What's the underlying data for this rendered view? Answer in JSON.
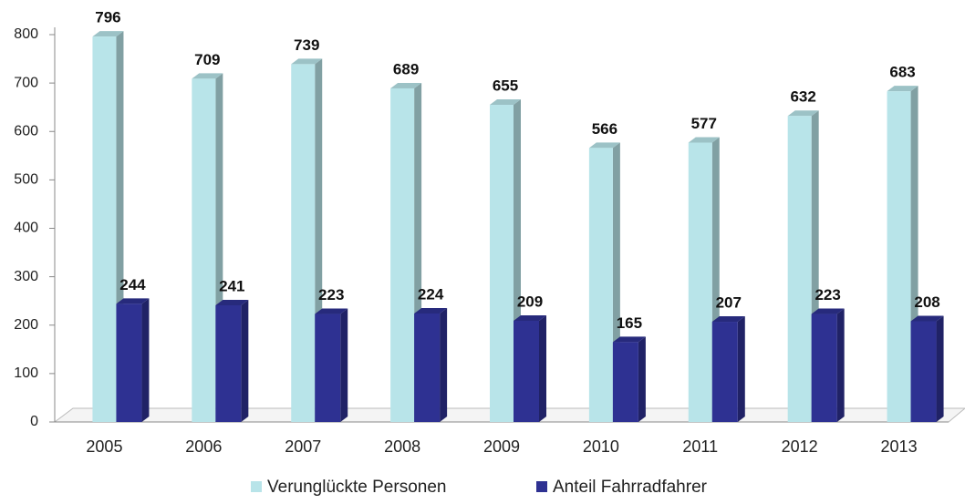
{
  "chart_data": {
    "type": "bar3d",
    "categories": [
      "2005",
      "2006",
      "2007",
      "2008",
      "2009",
      "2010",
      "2011",
      "2012",
      "2013"
    ],
    "series": [
      {
        "name": "Verunglückte Personen",
        "color": "#b8e4e9",
        "values": [
          796,
          709,
          739,
          689,
          655,
          566,
          577,
          632,
          683
        ]
      },
      {
        "name": "Anteil Fahrradfahrer",
        "color": "#2e3192",
        "values": [
          244,
          241,
          223,
          224,
          209,
          165,
          207,
          223,
          208
        ]
      }
    ],
    "ylim": [
      0,
      800
    ],
    "yticks": [
      0,
      100,
      200,
      300,
      400,
      500,
      600,
      700,
      800
    ],
    "grid": false,
    "legend": "bottom"
  }
}
